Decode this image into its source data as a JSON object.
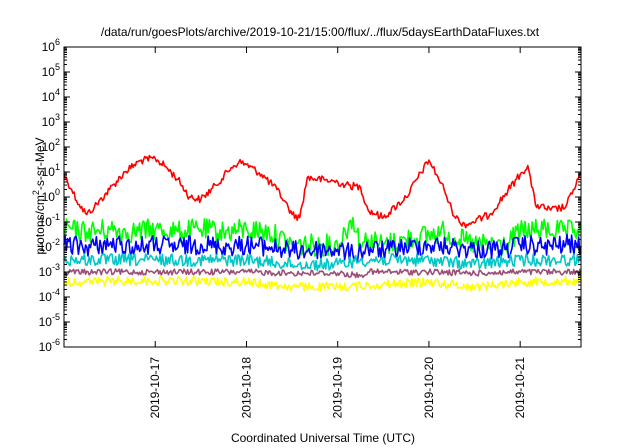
{
  "chart_data": {
    "type": "line",
    "title": "/data/run/goesPlots/archive/2019-10-21/15:00/flux/../flux/5daysEarthDataFluxes.txt",
    "xlabel": "Coordinated Universal Time (UTC)",
    "ylabel": {
      "base": "protons/cm",
      "sup": "2",
      "rest": "-s-sr-MeV"
    },
    "yscale": "log",
    "ylim": [
      1e-06,
      1000000.0
    ],
    "xlim": [
      "2019-10-16T00:00",
      "2019-10-21T16:00"
    ],
    "grid": false,
    "legend": "none",
    "y_ticks": [
      {
        "base": "10",
        "exp": "-6"
      },
      {
        "base": "10",
        "exp": "-5"
      },
      {
        "base": "10",
        "exp": "-4"
      },
      {
        "base": "10",
        "exp": "-3"
      },
      {
        "base": "10",
        "exp": "-2"
      },
      {
        "base": "10",
        "exp": "-1"
      },
      {
        "base": "10",
        "exp": "0"
      },
      {
        "base": "10",
        "exp": "1"
      },
      {
        "base": "10",
        "exp": "2"
      },
      {
        "base": "10",
        "exp": "3"
      },
      {
        "base": "10",
        "exp": "4"
      },
      {
        "base": "10",
        "exp": "5"
      },
      {
        "base": "10",
        "exp": "6"
      }
    ],
    "x_ticks": [
      "2019-10-17",
      "2019-10-18",
      "2019-10-19",
      "2019-10-20",
      "2019-10-21"
    ],
    "series": [
      {
        "color": "#ff0000",
        "x": [
          "2019-10-16T00:00",
          "2019-10-16T02:00",
          "2019-10-16T04:00",
          "2019-10-16T06:00",
          "2019-10-16T08:00",
          "2019-10-16T12:00",
          "2019-10-16T16:00",
          "2019-10-16T20:00",
          "2019-10-17T00:00",
          "2019-10-17T03:00",
          "2019-10-17T06:00",
          "2019-10-17T09:00",
          "2019-10-17T12:00",
          "2019-10-17T16:00",
          "2019-10-17T20:00",
          "2019-10-17T22:00",
          "2019-10-18T00:00",
          "2019-10-18T04:00",
          "2019-10-18T08:00",
          "2019-10-18T10:00",
          "2019-10-18T12:00",
          "2019-10-18T14:00",
          "2019-10-18T16:00",
          "2019-10-19T00:00",
          "2019-10-19T02:00",
          "2019-10-19T06:00",
          "2019-10-19T08:00",
          "2019-10-19T12:00",
          "2019-10-19T18:00",
          "2019-10-20T00:00",
          "2019-10-20T02:00",
          "2019-10-20T04:00",
          "2019-10-20T06:00",
          "2019-10-20T08:00",
          "2019-10-20T10:00",
          "2019-10-20T16:00",
          "2019-10-21T00:00",
          "2019-10-21T02:00",
          "2019-10-21T04:00",
          "2019-10-21T08:00",
          "2019-10-21T12:00",
          "2019-10-21T14:00",
          "2019-10-21T16:00"
        ],
        "values": [
          8,
          2,
          0.5,
          0.2,
          0.4,
          2,
          10,
          28,
          35,
          15,
          5,
          1,
          0.8,
          3,
          15,
          25,
          20,
          8,
          2,
          0.7,
          0.2,
          0.15,
          6,
          4,
          3,
          2.5,
          0.3,
          0.15,
          1,
          30,
          8,
          2,
          0.3,
          0.1,
          0.08,
          0.2,
          8,
          18,
          0.5,
          0.3,
          0.4,
          2,
          9
        ]
      },
      {
        "color": "#00ff00",
        "x": [
          "2019-10-16T00:00",
          "2019-10-16T06:00",
          "2019-10-16T12:00",
          "2019-10-16T18:00",
          "2019-10-17T00:00",
          "2019-10-17T06:00",
          "2019-10-17T12:00",
          "2019-10-17T18:00",
          "2019-10-18T00:00",
          "2019-10-18T06:00",
          "2019-10-18T12:00",
          "2019-10-19T00:00",
          "2019-10-19T04:00",
          "2019-10-19T06:00",
          "2019-10-19T08:00",
          "2019-10-19T12:00",
          "2019-10-19T18:00",
          "2019-10-20T00:00",
          "2019-10-20T04:00",
          "2019-10-20T08:00",
          "2019-10-20T12:00",
          "2019-10-20T20:00",
          "2019-10-21T00:00",
          "2019-10-21T06:00",
          "2019-10-21T12:00",
          "2019-10-21T16:00"
        ],
        "values": [
          0.05,
          0.04,
          0.05,
          0.04,
          0.05,
          0.04,
          0.05,
          0.04,
          0.05,
          0.04,
          0.012,
          0.012,
          0.15,
          0.012,
          0.02,
          0.012,
          0.02,
          0.03,
          0.04,
          0.02,
          0.012,
          0.012,
          0.04,
          0.05,
          0.04,
          0.05
        ]
      },
      {
        "color": "#0000ff",
        "x": [
          "2019-10-16T00:00",
          "2019-10-16T06:00",
          "2019-10-16T12:00",
          "2019-10-16T18:00",
          "2019-10-17T00:00",
          "2019-10-17T06:00",
          "2019-10-17T12:00",
          "2019-10-17T18:00",
          "2019-10-18T00:00",
          "2019-10-18T06:00",
          "2019-10-18T12:00",
          "2019-10-19T00:00",
          "2019-10-19T04:00",
          "2019-10-19T08:00",
          "2019-10-19T12:00",
          "2019-10-19T18:00",
          "2019-10-20T00:00",
          "2019-10-20T06:00",
          "2019-10-20T12:00",
          "2019-10-20T20:00",
          "2019-10-21T00:00",
          "2019-10-21T06:00",
          "2019-10-21T12:00",
          "2019-10-21T16:00"
        ],
        "values": [
          0.012,
          0.01,
          0.013,
          0.01,
          0.012,
          0.01,
          0.013,
          0.01,
          0.012,
          0.01,
          0.007,
          0.008,
          0.005,
          0.009,
          0.007,
          0.01,
          0.012,
          0.01,
          0.008,
          0.008,
          0.012,
          0.01,
          0.013,
          0.011
        ]
      },
      {
        "color": "#00c8c8",
        "x": [
          "2019-10-16T00:00",
          "2019-10-17T00:00",
          "2019-10-18T00:00",
          "2019-10-18T12:00",
          "2019-10-19T00:00",
          "2019-10-19T06:00",
          "2019-10-20T00:00",
          "2019-10-20T12:00",
          "2019-10-21T00:00",
          "2019-10-21T16:00"
        ],
        "values": [
          0.003,
          0.003,
          0.003,
          0.002,
          0.002,
          0.003,
          0.003,
          0.002,
          0.003,
          0.003
        ]
      },
      {
        "color": "#9b4f76",
        "x": [
          "2019-10-16T00:00",
          "2019-10-17T00:00",
          "2019-10-18T00:00",
          "2019-10-18T12:00",
          "2019-10-19T00:00",
          "2019-10-19T06:00",
          "2019-10-19T08:00",
          "2019-10-20T00:00",
          "2019-10-20T12:00",
          "2019-10-21T00:00",
          "2019-10-21T16:00"
        ],
        "values": [
          0.001,
          0.001,
          0.001,
          0.0009,
          0.0009,
          0.0007,
          0.001,
          0.001,
          0.0009,
          0.001,
          0.001
        ]
      },
      {
        "color": "#ffff00",
        "x": [
          "2019-10-16T00:00",
          "2019-10-17T00:00",
          "2019-10-18T00:00",
          "2019-10-18T12:00",
          "2019-10-19T00:00",
          "2019-10-20T00:00",
          "2019-10-20T12:00",
          "2019-10-21T00:00",
          "2019-10-21T16:00"
        ],
        "values": [
          0.0004,
          0.00045,
          0.0004,
          0.00025,
          0.00025,
          0.0004,
          0.00025,
          0.0004,
          0.00045
        ]
      }
    ]
  }
}
